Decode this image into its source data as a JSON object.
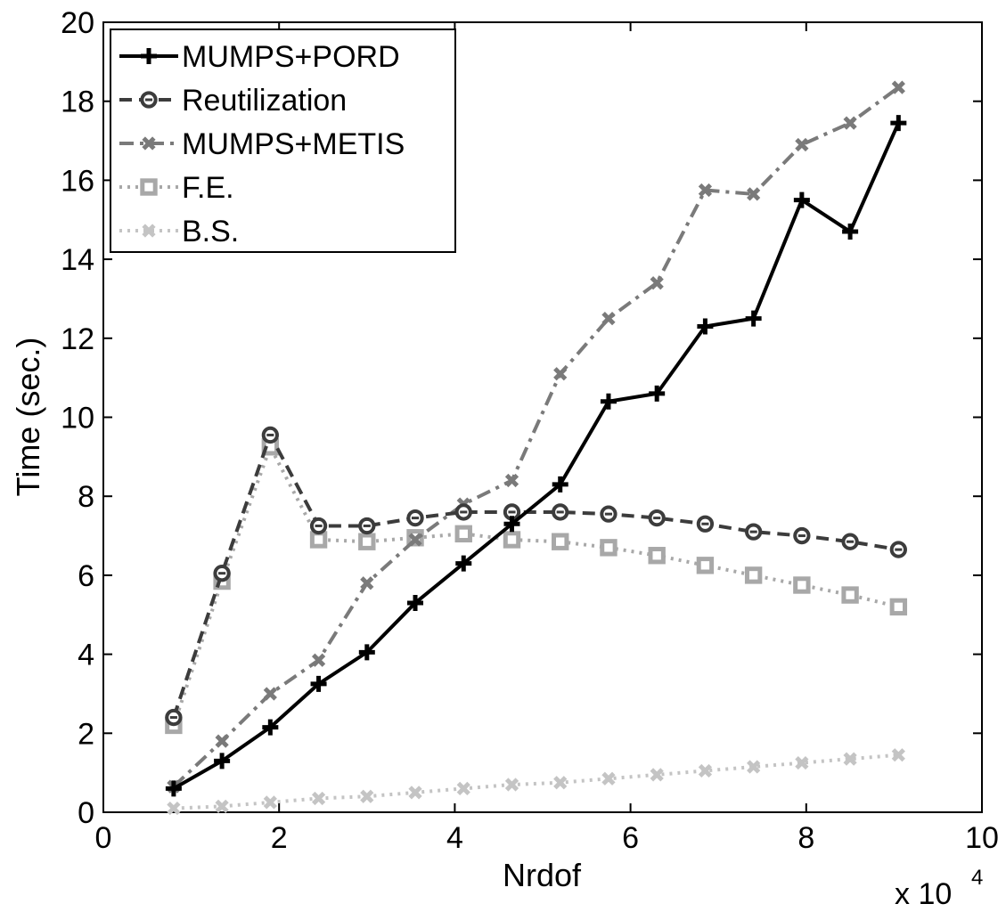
{
  "chart_data": {
    "type": "line",
    "title": "",
    "xlabel": "Nrdof",
    "ylabel": "Time (sec.)",
    "x_multiplier_label": "x 10",
    "x_multiplier_exponent": "4",
    "xlim": [
      0,
      10
    ],
    "ylim": [
      0,
      20
    ],
    "xticks": [
      "0",
      "2",
      "4",
      "6",
      "8",
      "10"
    ],
    "yticks": [
      "0",
      "2",
      "4",
      "6",
      "8",
      "10",
      "12",
      "14",
      "16",
      "18",
      "20"
    ],
    "grid": false,
    "legend_position": "top-left",
    "x": [
      0.8,
      1.35,
      1.9,
      2.45,
      3.0,
      3.55,
      4.1,
      4.65,
      5.2,
      5.75,
      6.3,
      6.85,
      7.4,
      7.95,
      8.5,
      9.05
    ],
    "series": [
      {
        "name": "MUMPS+PORD",
        "color": "#000000",
        "dash": "solid",
        "marker": "plus",
        "values": [
          0.6,
          1.3,
          2.15,
          3.25,
          4.05,
          5.3,
          6.3,
          7.3,
          8.3,
          10.4,
          10.6,
          12.3,
          12.5,
          15.5,
          14.7,
          17.45
        ]
      },
      {
        "name": "Reutilization",
        "color": "#3c3c3c",
        "dash": "dashed",
        "marker": "circle",
        "values": [
          2.4,
          6.05,
          9.55,
          7.25,
          7.25,
          7.45,
          7.6,
          7.6,
          7.6,
          7.55,
          7.45,
          7.3,
          7.1,
          7.0,
          6.85,
          6.65
        ]
      },
      {
        "name": "MUMPS+METIS",
        "color": "#7a7a7a",
        "dash": "dashdot",
        "marker": "x",
        "values": [
          0.65,
          1.8,
          3.0,
          3.85,
          5.8,
          6.9,
          7.8,
          8.4,
          11.1,
          12.5,
          13.4,
          15.75,
          15.65,
          16.9,
          17.45,
          18.35
        ]
      },
      {
        "name": "F.E.",
        "color": "#a8a8a8",
        "dash": "dotted",
        "marker": "square",
        "values": [
          2.2,
          5.85,
          9.25,
          6.9,
          6.85,
          6.95,
          7.05,
          6.9,
          6.85,
          6.7,
          6.5,
          6.25,
          6.0,
          5.75,
          5.5,
          5.2
        ]
      },
      {
        "name": "B.S.",
        "color": "#c4c4c4",
        "dash": "dotted",
        "marker": "x",
        "values": [
          0.1,
          0.15,
          0.25,
          0.35,
          0.4,
          0.5,
          0.6,
          0.7,
          0.75,
          0.85,
          0.95,
          1.05,
          1.15,
          1.25,
          1.35,
          1.45
        ]
      }
    ]
  }
}
